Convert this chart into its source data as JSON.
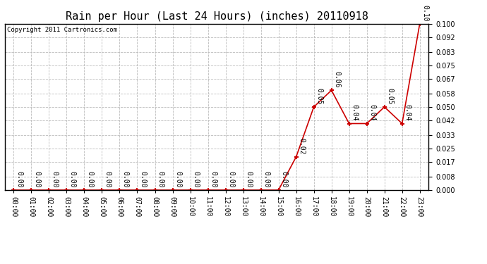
{
  "title": "Rain per Hour (Last 24 Hours) (inches) 20110918",
  "copyright_text": "Copyright 2011 Cartronics.com",
  "x_labels": [
    "00:00",
    "01:00",
    "02:00",
    "03:00",
    "04:00",
    "05:00",
    "06:00",
    "07:00",
    "08:00",
    "09:00",
    "10:00",
    "11:00",
    "12:00",
    "13:00",
    "14:00",
    "15:00",
    "16:00",
    "17:00",
    "18:00",
    "19:00",
    "20:00",
    "21:00",
    "22:00",
    "23:00"
  ],
  "y_values": [
    0.0,
    0.0,
    0.0,
    0.0,
    0.0,
    0.0,
    0.0,
    0.0,
    0.0,
    0.0,
    0.0,
    0.0,
    0.0,
    0.0,
    0.0,
    0.0,
    0.02,
    0.05,
    0.06,
    0.04,
    0.04,
    0.05,
    0.04,
    0.1
  ],
  "point_labels": [
    "0.00",
    "0.00",
    "0.00",
    "0.00",
    "0.00",
    "0.00",
    "0.00",
    "0.00",
    "0.00",
    "0.00",
    "0.00",
    "0.00",
    "0.00",
    "0.00",
    "0.00",
    "0.00",
    "0.02",
    "0.05",
    "0.06",
    "0.04",
    "0.04",
    "0.05",
    "0.04",
    "0.10"
  ],
  "line_color": "#cc0000",
  "marker_color": "#cc0000",
  "background_color": "#ffffff",
  "grid_color": "#bbbbbb",
  "ylim": [
    0,
    0.1
  ],
  "ytick_values": [
    0.0,
    0.008,
    0.017,
    0.025,
    0.033,
    0.042,
    0.05,
    0.058,
    0.067,
    0.075,
    0.083,
    0.092,
    0.1
  ],
  "title_fontsize": 11,
  "label_fontsize": 7,
  "tick_fontsize": 7,
  "copyright_fontsize": 6.5
}
